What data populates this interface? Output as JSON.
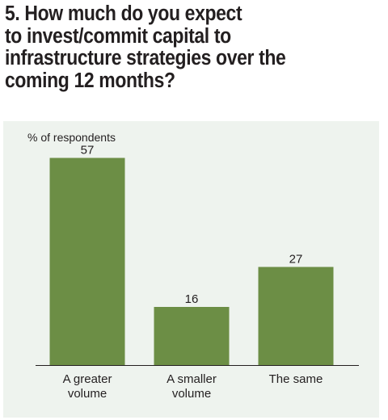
{
  "title": "5. How much do you expect to invest/commit capital to infrastructure strategies over the coming 12 months?",
  "title_lines": [
    "5. How much do you expect",
    "to invest/commit capital to",
    "infrastructure strategies over the",
    "coming 12 months?"
  ],
  "colors": {
    "bar": "#6c8e45",
    "panel": "#eef3ee",
    "text": "#231f20",
    "axis": "#231f20"
  },
  "chart_data": {
    "type": "bar",
    "ylabel": "% of respondents",
    "categories": [
      [
        "A greater",
        "volume"
      ],
      [
        "A smaller",
        "volume"
      ],
      [
        "The same"
      ]
    ],
    "values": [
      57,
      16,
      27
    ],
    "ylim": [
      0,
      60
    ],
    "grid": false
  }
}
